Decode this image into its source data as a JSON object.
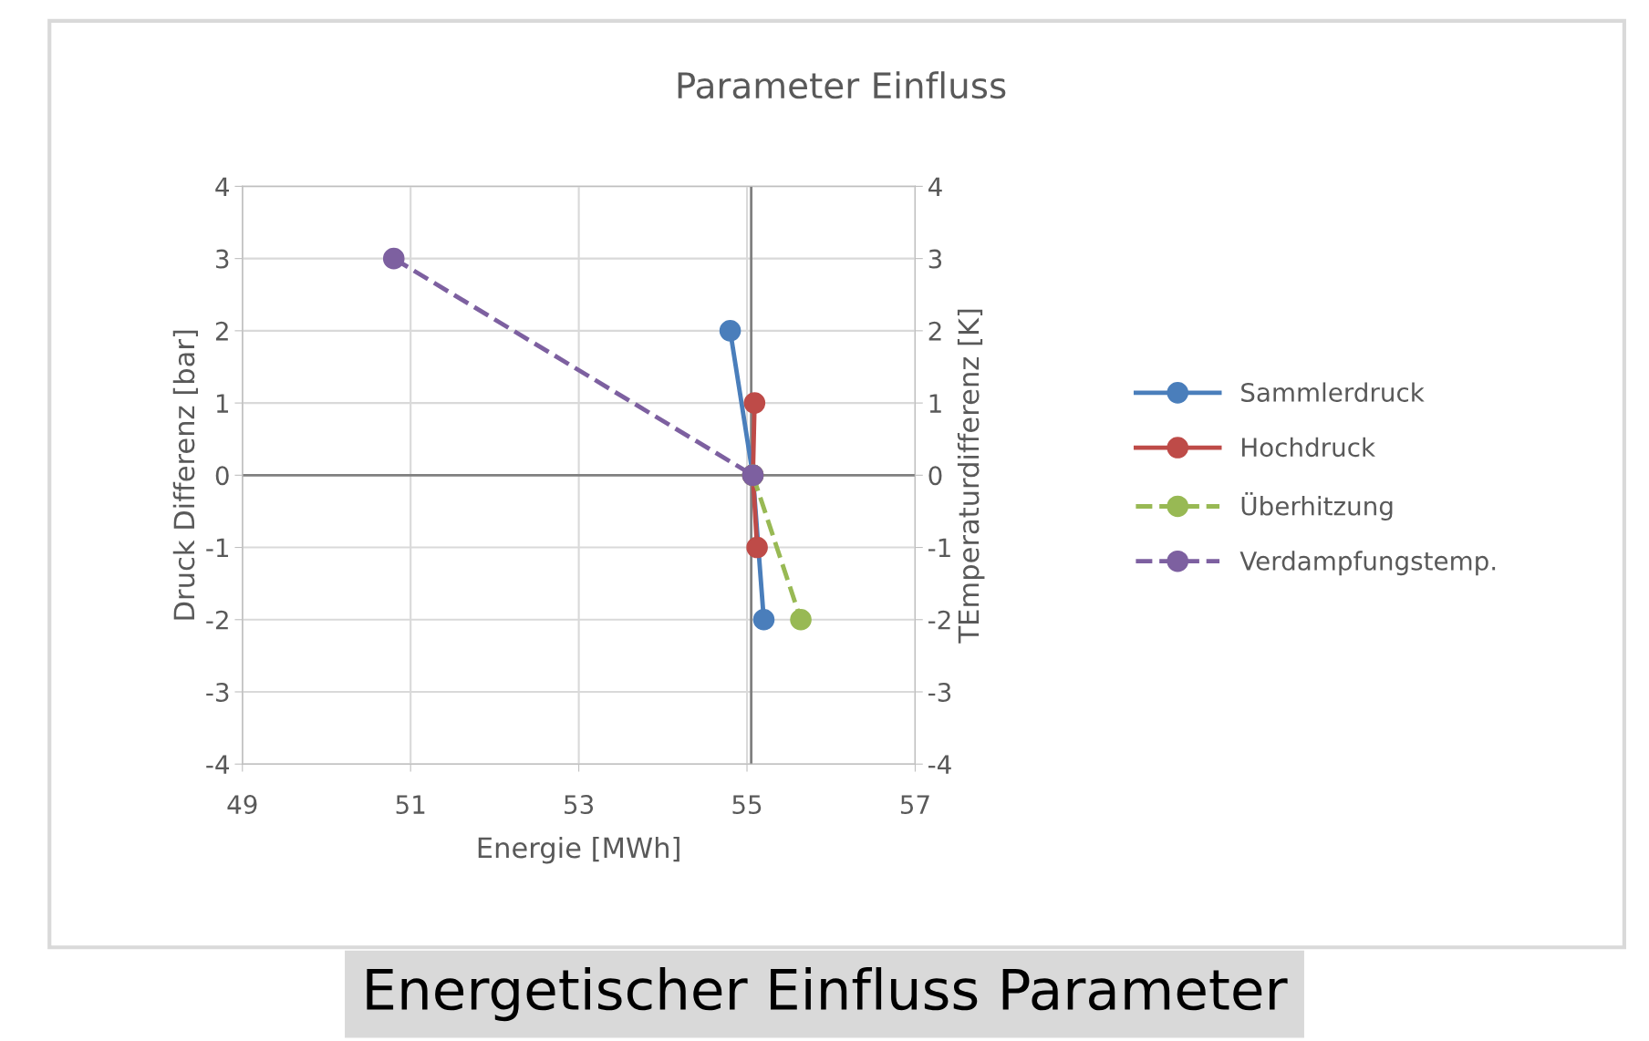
{
  "chart_data": {
    "type": "line",
    "title": "Parameter Einfluss",
    "xlabel": "Energie [MWh]",
    "ylabel": "Druck Differenz [bar]",
    "y2label": "TEmperaturdifferenz [K]",
    "annotations": [
      "Energetischer Einfluss Parameter"
    ],
    "xlim": [
      49,
      57
    ],
    "xticks": [
      49,
      51,
      53,
      55,
      57
    ],
    "ylim": [
      -4,
      4
    ],
    "yticks": [
      -4,
      -3,
      -2,
      -1,
      0,
      1,
      2,
      3,
      4
    ],
    "y2lim": [
      -4,
      4
    ],
    "y2ticks": [
      -4,
      -3,
      -2,
      -1,
      0,
      1,
      2,
      3,
      4
    ],
    "grid": true,
    "legend": "right",
    "marker": "circle",
    "ref_lines": [
      {
        "axis": "x",
        "value": 55.05,
        "color": "#808080"
      },
      {
        "axis": "y",
        "value": 0,
        "color": "#808080"
      }
    ],
    "series": [
      {
        "name": "Sammlerdruck",
        "color": "#4a7ebb",
        "x": [
          54.8,
          55.07,
          55.2
        ],
        "values": [
          2,
          0,
          -2
        ],
        "line_style": "solid"
      },
      {
        "name": "Hochdruck",
        "color": "#be4b48",
        "x": [
          55.09,
          55.07,
          55.12
        ],
        "values": [
          1,
          0,
          -1
        ],
        "line_style": "solid"
      },
      {
        "name": "Überhitzung",
        "color": "#98b954",
        "x": [
          55.07,
          55.64
        ],
        "values": [
          0,
          -2
        ],
        "line_style": "dashed"
      },
      {
        "name": "Verdampfungstemp.",
        "color": "#7d60a0",
        "x": [
          50.8,
          55.07
        ],
        "values": [
          3,
          0
        ],
        "line_style": "dashed"
      }
    ]
  }
}
